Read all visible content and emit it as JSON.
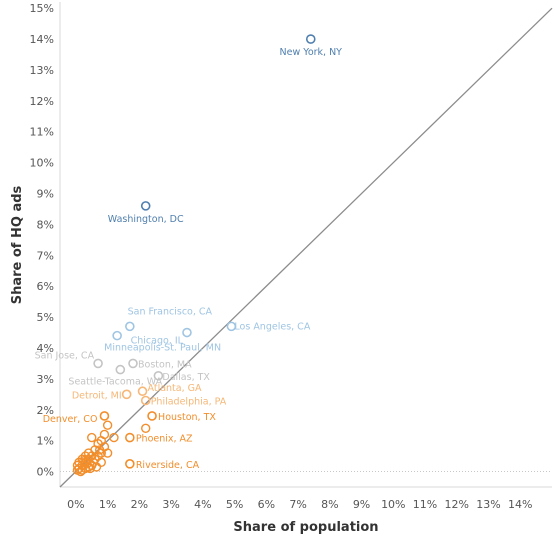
{
  "colors": {
    "high": "#4f7fae",
    "light_blue": "#9fc5e3",
    "gray": "#c4c4c4",
    "light_orange": "#f6b777",
    "orange": "#f28e2b",
    "diagonal": "#8c8c8c",
    "grid": "#ebebeb",
    "zero_line": "#c8c8c8"
  },
  "chart_data": {
    "type": "scatter",
    "title": "",
    "xlabel": "Share of population",
    "ylabel": "Share of HQ ads",
    "xlim": [
      -0.5,
      15.0
    ],
    "ylim": [
      -0.5,
      15.2
    ],
    "x_ticks": [
      "0%",
      "1%",
      "2%",
      "3%",
      "4%",
      "5%",
      "6%",
      "7%",
      "8%",
      "9%",
      "10%",
      "11%",
      "12%",
      "13%",
      "14%"
    ],
    "y_ticks": [
      "0%",
      "1%",
      "2%",
      "3%",
      "4%",
      "5%",
      "6%",
      "7%",
      "8%",
      "9%",
      "10%",
      "11%",
      "12%",
      "13%",
      "14%",
      "15%"
    ],
    "reference_line": "y = x",
    "grid": false,
    "labeled_points": [
      {
        "label": "New York, NY",
        "x": 7.4,
        "y": 14.0,
        "color_key": "high"
      },
      {
        "label": "Washington, DC",
        "x": 2.2,
        "y": 8.6,
        "color_key": "high"
      },
      {
        "label": "San Francisco, CA",
        "x": 1.7,
        "y": 4.7,
        "color_key": "light_blue"
      },
      {
        "label": "Los Angeles, CA",
        "x": 4.9,
        "y": 4.7,
        "color_key": "light_blue"
      },
      {
        "label": "Chicago, IL",
        "x": 3.5,
        "y": 4.5,
        "color_key": "light_blue"
      },
      {
        "label": "Minneapolis-St. Paul, MN",
        "x": 1.3,
        "y": 4.4,
        "color_key": "light_blue"
      },
      {
        "label": "San Jose, CA",
        "x": 0.7,
        "y": 3.5,
        "color_key": "gray"
      },
      {
        "label": "Boston, MA",
        "x": 1.8,
        "y": 3.5,
        "color_key": "gray"
      },
      {
        "label": "Dallas, TX",
        "x": 2.6,
        "y": 3.1,
        "color_key": "gray"
      },
      {
        "label": "Seattle-Tacoma, WA",
        "x": 1.4,
        "y": 3.3,
        "color_key": "gray"
      },
      {
        "label": "Atlanta, GA",
        "x": 2.1,
        "y": 2.6,
        "color_key": "light_orange"
      },
      {
        "label": "Detroit, MI",
        "x": 1.6,
        "y": 2.5,
        "color_key": "light_orange"
      },
      {
        "label": "Philadelphia, PA",
        "x": 2.2,
        "y": 2.3,
        "color_key": "light_orange"
      },
      {
        "label": "Houston, TX",
        "x": 2.4,
        "y": 1.8,
        "color_key": "orange"
      },
      {
        "label": "Denver, CO",
        "x": 0.9,
        "y": 1.8,
        "color_key": "orange"
      },
      {
        "label": "Phoenix, AZ",
        "x": 1.7,
        "y": 1.1,
        "color_key": "orange"
      },
      {
        "label": "Riverside, CA",
        "x": 1.7,
        "y": 0.25,
        "color_key": "orange"
      }
    ],
    "unlabeled_points": [
      {
        "x": 1.0,
        "y": 1.5
      },
      {
        "x": 1.2,
        "y": 1.1
      },
      {
        "x": 2.2,
        "y": 1.4
      },
      {
        "x": 0.9,
        "y": 1.2
      },
      {
        "x": 0.8,
        "y": 1.0
      },
      {
        "x": 0.7,
        "y": 0.9
      },
      {
        "x": 0.6,
        "y": 0.7
      },
      {
        "x": 1.0,
        "y": 0.6
      },
      {
        "x": 0.5,
        "y": 0.5
      },
      {
        "x": 0.4,
        "y": 0.4
      },
      {
        "x": 0.8,
        "y": 0.3
      },
      {
        "x": 0.3,
        "y": 0.3
      },
      {
        "x": 0.2,
        "y": 0.2
      },
      {
        "x": 0.1,
        "y": 0.1
      },
      {
        "x": 0.5,
        "y": 0.2
      },
      {
        "x": 0.6,
        "y": 0.4
      },
      {
        "x": 0.3,
        "y": 0.1
      },
      {
        "x": 0.2,
        "y": 0.05
      },
      {
        "x": 0.4,
        "y": 0.15
      },
      {
        "x": 0.1,
        "y": 0.3
      },
      {
        "x": 0.7,
        "y": 0.5
      },
      {
        "x": 0.9,
        "y": 0.8
      },
      {
        "x": 0.35,
        "y": 0.25
      },
      {
        "x": 0.15,
        "y": 0.0
      },
      {
        "x": 0.25,
        "y": 0.35
      },
      {
        "x": 0.45,
        "y": 0.1
      },
      {
        "x": 0.55,
        "y": 0.3
      },
      {
        "x": 0.05,
        "y": 0.05
      },
      {
        "x": 0.05,
        "y": 0.2
      },
      {
        "x": 0.65,
        "y": 0.15
      },
      {
        "x": 0.75,
        "y": 0.7
      },
      {
        "x": 0.3,
        "y": 0.5
      },
      {
        "x": 0.5,
        "y": 1.1
      },
      {
        "x": 0.8,
        "y": 0.6
      },
      {
        "x": 0.2,
        "y": 0.4
      },
      {
        "x": 0.4,
        "y": 0.6
      }
    ]
  }
}
